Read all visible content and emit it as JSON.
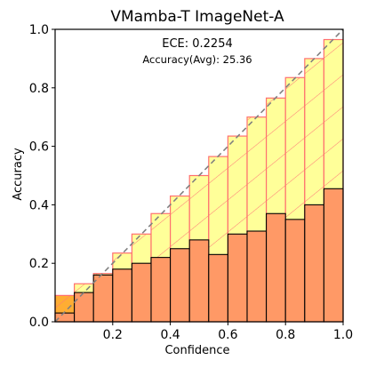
{
  "chart_data": {
    "type": "bar",
    "title": "VMamba-T  ImageNet-A",
    "xlabel": "Confidence",
    "ylabel": "Accuracy",
    "annotations": {
      "ece": "ECE: 0.2254",
      "accuracy": "Accuracy(Avg): 25.36"
    },
    "xlim": [
      0,
      1
    ],
    "ylim": [
      0,
      1
    ],
    "xticks": [
      "0.2",
      "0.4",
      "0.6",
      "0.8",
      "1.0"
    ],
    "yticks": [
      "0.0",
      "0.2",
      "0.4",
      "0.6",
      "0.8",
      "1.0"
    ],
    "bin_width": 0.0667,
    "bin_starts": [
      0.0,
      0.0667,
      0.1333,
      0.2,
      0.2667,
      0.3333,
      0.4,
      0.4667,
      0.5333,
      0.6,
      0.6667,
      0.7333,
      0.8,
      0.8667,
      0.9333
    ],
    "series": [
      {
        "role": "accuracy",
        "values": [
          0.03,
          0.1,
          0.16,
          0.18,
          0.2,
          0.22,
          0.25,
          0.28,
          0.23,
          0.3,
          0.31,
          0.37,
          0.35,
          0.4,
          0.455
        ],
        "color": "#ff9966"
      },
      {
        "role": "gap_top",
        "values": [
          0.09,
          0.13,
          0.165,
          0.235,
          0.3,
          0.37,
          0.43,
          0.5,
          0.565,
          0.635,
          0.7,
          0.765,
          0.835,
          0.9,
          0.965
        ],
        "color": "#ffff99",
        "edge_color": "#ff6f6f"
      }
    ],
    "first_bin_gap_color": "#ffad33",
    "diagonal": {
      "color": "#7f7f7f",
      "style": "dashed"
    },
    "grid": false
  }
}
